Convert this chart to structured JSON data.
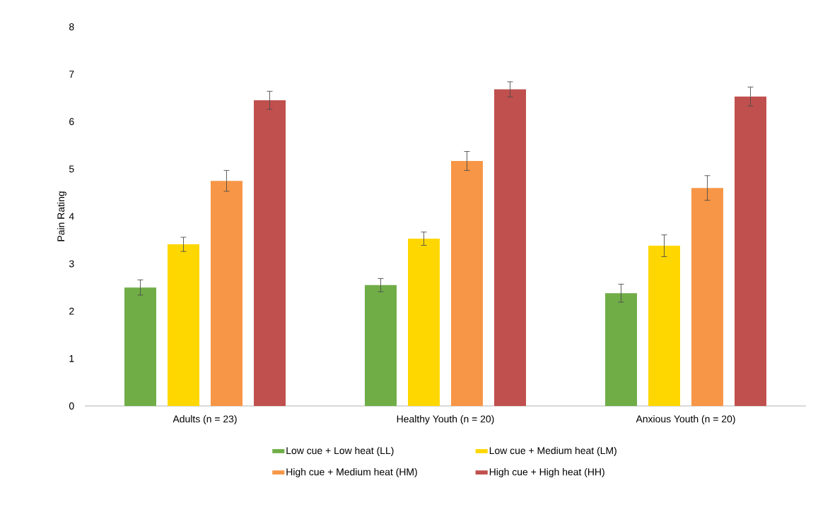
{
  "chart_data": {
    "type": "bar",
    "ylabel": "Pain Rating",
    "categories": [
      "Adults (n = 23)",
      "Healthy Youth (n = 20)",
      "Anxious Youth (n = 20)"
    ],
    "series": [
      {
        "name": "Low cue + Low heat (LL)",
        "color": "#70ad47",
        "values": [
          2.5,
          2.55,
          2.38
        ],
        "errors": [
          0.16,
          0.14,
          0.19
        ]
      },
      {
        "name": "Low cue + Medium heat (LM)",
        "color": "#ffd700",
        "values": [
          3.41,
          3.53,
          3.38
        ],
        "errors": [
          0.15,
          0.14,
          0.23
        ]
      },
      {
        "name": "High cue + Medium heat (HM)",
        "color": "#f79646",
        "values": [
          4.75,
          5.17,
          4.6
        ],
        "errors": [
          0.22,
          0.2,
          0.26
        ]
      },
      {
        "name": "High cue + High heat (HH)",
        "color": "#c0504d",
        "values": [
          6.45,
          6.68,
          6.53
        ],
        "errors": [
          0.19,
          0.16,
          0.2
        ]
      }
    ],
    "ylim": [
      0,
      8
    ],
    "yticks": [
      0,
      1,
      2,
      3,
      4,
      5,
      6,
      7,
      8
    ],
    "grid": false,
    "legend": "bottom"
  }
}
